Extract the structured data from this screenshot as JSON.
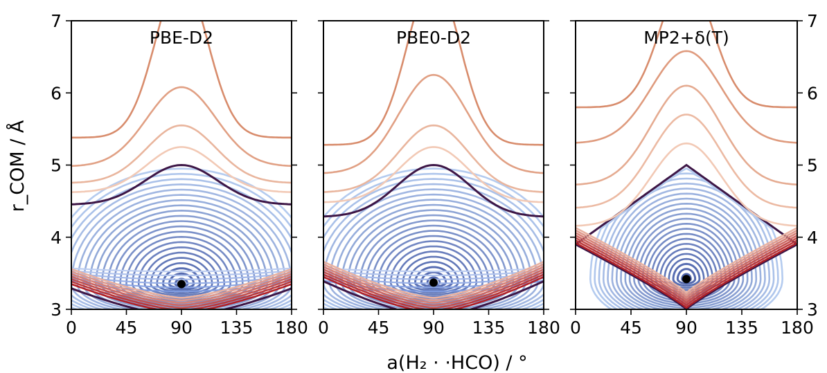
{
  "figure": {
    "xlabel": "a(H₂ · ·HCO) / °",
    "ylabel": "r_COM / Å"
  },
  "chart_data": {
    "type": "contour",
    "xlim": [
      0,
      180
    ],
    "ylim": [
      3,
      7
    ],
    "xticks": [
      0,
      45,
      90,
      135,
      180
    ],
    "yticks": [
      3,
      4,
      5,
      6,
      7
    ],
    "xlabel": "a(H₂ · ·HCO) / °",
    "ylabel": "r_COM / Å",
    "ytick_labels_left": true,
    "ytick_labels_right": true,
    "colors": {
      "attractive_far": "#6f8fd8",
      "attractive_near": "#b4cbef",
      "boundary": "#3d1646",
      "repulsive_weak": "#f2c9b5",
      "repulsive_strong": "#b22025",
      "minimum_marker": "#000000"
    },
    "panels": [
      {
        "title": "PBE-D2",
        "minimum": {
          "x": 90,
          "y": 3.35
        },
        "boundary": {
          "r_at_0": 4.45,
          "r_at_90": 5.0,
          "shape": "gaussian"
        },
        "inner_boundary": {
          "r_at_0": 3.35,
          "r_at_90": 2.95
        },
        "outer_contours_r_at_90": [
          5.25,
          5.55,
          6.08,
          7.6
        ],
        "outer_contours_r_at_0": [
          4.62,
          4.75,
          4.98,
          5.38
        ]
      },
      {
        "title": "PBE0-D2",
        "minimum": {
          "x": 90,
          "y": 3.37
        },
        "boundary": {
          "r_at_0": 4.28,
          "r_at_90": 5.0,
          "shape": "gaussian"
        },
        "inner_boundary": {
          "r_at_0": 3.45,
          "r_at_90": 2.95
        },
        "outer_contours_r_at_90": [
          5.25,
          5.55,
          6.25,
          7.6
        ],
        "outer_contours_r_at_0": [
          4.48,
          4.62,
          4.88,
          5.28
        ]
      },
      {
        "title": "MP2+δ(T)",
        "minimum": {
          "x": 90,
          "y": 3.42
        },
        "boundary": {
          "r_at_0": 3.9,
          "r_at_90": 5.0,
          "shape": "diamond"
        },
        "inner_boundary": {
          "r_at_0": 3.9,
          "r_at_90": 3.0
        },
        "outer_contours_r_at_90": [
          5.3,
          5.7,
          6.1,
          6.58,
          7.6
        ],
        "outer_contours_r_at_0": [
          4.15,
          4.4,
          4.72,
          5.3,
          5.8
        ]
      }
    ]
  }
}
